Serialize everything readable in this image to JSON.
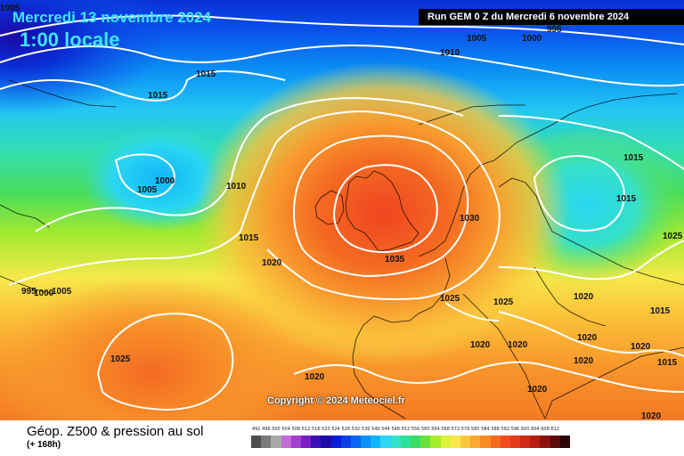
{
  "header": {
    "date": "Mercredi 13 novembre 2024",
    "time": "1:00 locale",
    "run": "Run GEM 0 Z du Mercredi 6 novembre 2024"
  },
  "copyright": "Copyright © 2024 Meteociel.fr",
  "legend": {
    "title": "Géop. Z500 & pression au sol",
    "subtitle": "(+ 168h)",
    "scale": [
      {
        "label": "492",
        "color": "#4d4d4d"
      },
      {
        "label": "496",
        "color": "#7a7a7a"
      },
      {
        "label": "500",
        "color": "#a8a8a8"
      },
      {
        "label": "504",
        "color": "#c26bd6"
      },
      {
        "label": "508",
        "color": "#a13fd0"
      },
      {
        "label": "512",
        "color": "#7a1fc4"
      },
      {
        "label": "516",
        "color": "#3a0fb5"
      },
      {
        "label": "520",
        "color": "#1a0aa6"
      },
      {
        "label": "524",
        "color": "#0a1bd8"
      },
      {
        "label": "528",
        "color": "#0a3fe8"
      },
      {
        "label": "532",
        "color": "#0a66f2"
      },
      {
        "label": "536",
        "color": "#0a8ff6"
      },
      {
        "label": "540",
        "color": "#12b6f8"
      },
      {
        "label": "544",
        "color": "#2ad6f2"
      },
      {
        "label": "548",
        "color": "#35e0c8"
      },
      {
        "label": "552",
        "color": "#2ee09a"
      },
      {
        "label": "556",
        "color": "#38dc66"
      },
      {
        "label": "560",
        "color": "#6ae03a"
      },
      {
        "label": "564",
        "color": "#a6ec2e"
      },
      {
        "label": "568",
        "color": "#dcf23a"
      },
      {
        "label": "572",
        "color": "#fbe64c"
      },
      {
        "label": "576",
        "color": "#fbc63c"
      },
      {
        "label": "580",
        "color": "#fba82f"
      },
      {
        "label": "584",
        "color": "#f88a24"
      },
      {
        "label": "588",
        "color": "#f56a1f"
      },
      {
        "label": "592",
        "color": "#f04c20"
      },
      {
        "label": "596",
        "color": "#e43a1c"
      },
      {
        "label": "600",
        "color": "#d12a18"
      },
      {
        "label": "604",
        "color": "#b51c14"
      },
      {
        "label": "608",
        "color": "#8c1210"
      },
      {
        "label": "612",
        "color": "#5a0a0a"
      },
      {
        "label": "",
        "color": "#2a0505"
      }
    ]
  },
  "isobar_labels": [
    "1005",
    "1000",
    "995",
    "1005",
    "1010",
    "1015",
    "1015",
    "1005",
    "1000",
    "1010",
    "1015",
    "1020",
    "1015",
    "1015",
    "1025",
    "1030",
    "1035",
    "995",
    "1000",
    "1005",
    "1025",
    "1025",
    "1020",
    "1020",
    "1020",
    "1020",
    "1025",
    "1015",
    "1015",
    "1020",
    "1020",
    "1020",
    "1020",
    "1000",
    "1005"
  ]
}
